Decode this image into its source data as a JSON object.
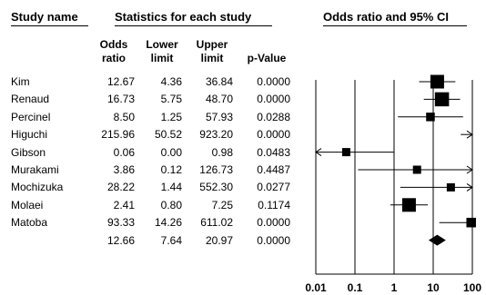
{
  "headers": {
    "study_name": "Study name",
    "statistics": "Statistics for each study",
    "plot": "Odds ratio and 95% CI"
  },
  "columns": [
    [
      "Odds",
      "ratio"
    ],
    [
      "Lower",
      "limit"
    ],
    [
      "Upper",
      "limit"
    ],
    [
      "p-Value"
    ]
  ],
  "rows": [
    {
      "study": "Kim",
      "or": "12.67",
      "lower": "4.36",
      "upper": "36.84",
      "p": "0.0000"
    },
    {
      "study": "Renaud",
      "or": "16.73",
      "lower": "5.75",
      "upper": "48.70",
      "p": "0.0000"
    },
    {
      "study": "Percinel",
      "or": "8.50",
      "lower": "1.25",
      "upper": "57.93",
      "p": "0.0288"
    },
    {
      "study": "Higuchi",
      "or": "215.96",
      "lower": "50.52",
      "upper": "923.20",
      "p": "0.0000"
    },
    {
      "study": "Gibson",
      "or": "0.06",
      "lower": "0.00",
      "upper": "0.98",
      "p": "0.0483"
    },
    {
      "study": "Murakami",
      "or": "3.86",
      "lower": "0.12",
      "upper": "126.73",
      "p": "0.4487"
    },
    {
      "study": "Mochizuka",
      "or": "28.22",
      "lower": "1.44",
      "upper": "552.30",
      "p": "0.0277"
    },
    {
      "study": "Molaei",
      "or": "2.41",
      "lower": "0.80",
      "upper": "7.25",
      "p": "0.1174"
    },
    {
      "study": "Matoba",
      "or": "93.33",
      "lower": "14.26",
      "upper": "611.02",
      "p": "0.0000"
    }
  ],
  "summary": {
    "study": "",
    "or": "12.66",
    "lower": "7.64",
    "upper": "20.97",
    "p": "0.0000"
  },
  "chart_data": {
    "type": "forest",
    "scale": "log",
    "xlim": [
      0.01,
      100
    ],
    "ticks": [
      "0.01",
      "0.1",
      "1",
      "10",
      "100"
    ],
    "tick_values": [
      0.01,
      0.1,
      1,
      10,
      100
    ],
    "series": [
      {
        "study": "Kim",
        "or": 12.67,
        "lower": 4.36,
        "upper": 36.84,
        "weight": 1.0
      },
      {
        "study": "Renaud",
        "or": 16.73,
        "lower": 5.75,
        "upper": 48.7,
        "weight": 1.05
      },
      {
        "study": "Percinel",
        "or": 8.5,
        "lower": 1.25,
        "upper": 57.93,
        "weight": 0.45
      },
      {
        "study": "Higuchi",
        "or": 215.96,
        "lower": 50.52,
        "upper": 923.2,
        "weight": 0.0
      },
      {
        "study": "Gibson",
        "or": 0.06,
        "lower": 0.0,
        "upper": 0.98,
        "weight": 0.4
      },
      {
        "study": "Murakami",
        "or": 3.86,
        "lower": 0.12,
        "upper": 126.73,
        "weight": 0.4
      },
      {
        "study": "Mochizuka",
        "or": 28.22,
        "lower": 1.44,
        "upper": 552.3,
        "weight": 0.4
      },
      {
        "study": "Molaei",
        "or": 2.41,
        "lower": 0.8,
        "upper": 7.25,
        "weight": 1.0
      },
      {
        "study": "Matoba",
        "or": 93.33,
        "lower": 14.26,
        "upper": 611.02,
        "weight": 0.55
      }
    ],
    "summary": {
      "or": 12.66,
      "lower": 7.64,
      "upper": 20.97
    }
  }
}
